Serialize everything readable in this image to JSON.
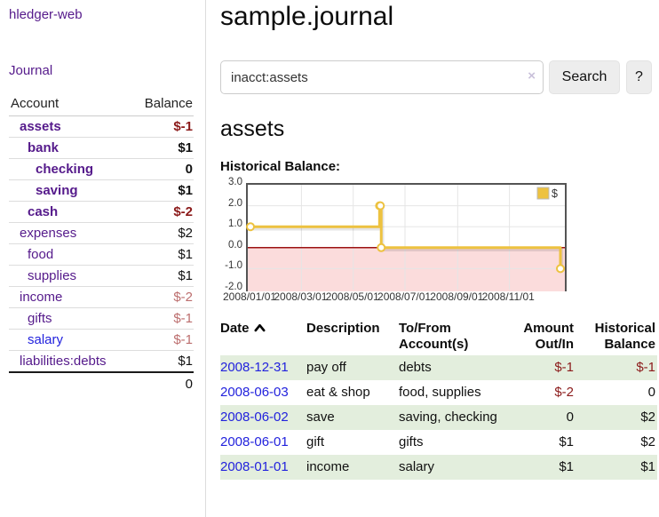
{
  "sidebar": {
    "brand": "hledger-web",
    "journal_link": "Journal",
    "accounts": {
      "header_account": "Account",
      "header_balance": "Balance",
      "rows": [
        {
          "name": "assets",
          "balance": "$-1",
          "indent": 1,
          "bold": true,
          "name_color": "purple",
          "balance_color": "neg_strong"
        },
        {
          "name": "bank",
          "balance": "$1",
          "indent": 2,
          "bold": true,
          "name_color": "purple",
          "balance_color": "default"
        },
        {
          "name": "checking",
          "balance": "0",
          "indent": 3,
          "bold": true,
          "name_color": "purple",
          "balance_color": "default"
        },
        {
          "name": "saving",
          "balance": "$1",
          "indent": 3,
          "bold": true,
          "name_color": "purple",
          "balance_color": "default"
        },
        {
          "name": "cash",
          "balance": "$-2",
          "indent": 2,
          "bold": true,
          "name_color": "purple",
          "balance_color": "neg_strong"
        },
        {
          "name": "expenses",
          "balance": "$2",
          "indent": 1,
          "bold": false,
          "name_color": "purple",
          "balance_color": "default"
        },
        {
          "name": "food",
          "balance": "$1",
          "indent": 2,
          "bold": false,
          "name_color": "purple",
          "balance_color": "default"
        },
        {
          "name": "supplies",
          "balance": "$1",
          "indent": 2,
          "bold": false,
          "name_color": "purple",
          "balance_color": "default"
        },
        {
          "name": "income",
          "balance": "$-2",
          "indent": 1,
          "bold": false,
          "name_color": "purple",
          "balance_color": "neg_muted"
        },
        {
          "name": "gifts",
          "balance": "$-1",
          "indent": 2,
          "bold": false,
          "name_color": "purple",
          "balance_color": "neg_muted"
        },
        {
          "name": "salary",
          "balance": "$-1",
          "indent": 2,
          "bold": false,
          "name_color": "blue",
          "balance_color": "neg_muted"
        },
        {
          "name": "liabilities:debts",
          "balance": "$1",
          "indent": 1,
          "bold": false,
          "name_color": "purple",
          "balance_color": "default"
        }
      ],
      "total": "0"
    }
  },
  "main": {
    "title": "sample.journal",
    "search": {
      "value": "inacct:assets",
      "clear_icon": "×",
      "button_label": "Search",
      "help_label": "?"
    },
    "heading": "assets",
    "section_label": "Historical Balance:"
  },
  "chart_data": {
    "type": "line",
    "style": "step",
    "title": "Historical Balance of assets",
    "series": [
      {
        "name": "$",
        "color": "#edc240",
        "points": [
          [
            "2008-01-01",
            1.0
          ],
          [
            "2008-06-01",
            2.0
          ],
          [
            "2008-06-02",
            2.0
          ],
          [
            "2008-06-03",
            0.0
          ],
          [
            "2008-12-31",
            -1.0
          ]
        ]
      }
    ],
    "x_range": [
      "2008-01-01",
      "2008-12-31"
    ],
    "x_ticks": [
      "2008/01/01",
      "2008/03/01",
      "2008/05/01",
      "2008/07/01",
      "2008/09/01",
      "2008/11/01"
    ],
    "y_range": [
      -2.0,
      3.0
    ],
    "y_ticks": [
      3.0,
      2.0,
      1.0,
      0.0,
      -1.0,
      -2.0
    ],
    "y_tick_labels": [
      "3.0",
      "2.0",
      "1.0",
      "0.0",
      "-1.0",
      "-2.0"
    ],
    "legend": {
      "label": "$",
      "position": "top-right"
    },
    "grid": true,
    "negative_region_color": "#fbdcdc",
    "zero_line_color": "#9c1212",
    "grid_color": "#e5e5e5",
    "border_color": "#545454"
  },
  "register": {
    "headers": [
      "Date",
      "Description",
      "To/From Account(s)",
      "Amount Out/In",
      "Historical Balance"
    ],
    "sort_column": "Date",
    "sort_direction": "ascending",
    "rows": [
      {
        "date": "2008-12-31",
        "description": "pay off",
        "accounts": "debts",
        "amount": "$-1",
        "balance": "$-1",
        "amount_negative": true,
        "balance_negative": true,
        "shaded": true
      },
      {
        "date": "2008-06-03",
        "description": "eat & shop",
        "accounts": "food, supplies",
        "amount": "$-2",
        "balance": "0",
        "amount_negative": true,
        "balance_negative": false,
        "shaded": false
      },
      {
        "date": "2008-06-02",
        "description": "save",
        "accounts": "saving, checking",
        "amount": "0",
        "balance": "$2",
        "amount_negative": false,
        "balance_negative": false,
        "shaded": true
      },
      {
        "date": "2008-06-01",
        "description": "gift",
        "accounts": "gifts",
        "amount": "$1",
        "balance": "$2",
        "amount_negative": false,
        "balance_negative": false,
        "shaded": false
      },
      {
        "date": "2008-01-01",
        "description": "income",
        "accounts": "salary",
        "amount": "$1",
        "balance": "$1",
        "amount_negative": false,
        "balance_negative": false,
        "shaded": true
      }
    ]
  },
  "colors": {
    "link_purple": "#551a8b",
    "link_blue": "#2222dd",
    "negative_strong": "#8b1a1a",
    "negative_muted": "#bc6e6e",
    "row_shade_green": "#e3eedd",
    "chart_gold": "#edc240"
  }
}
